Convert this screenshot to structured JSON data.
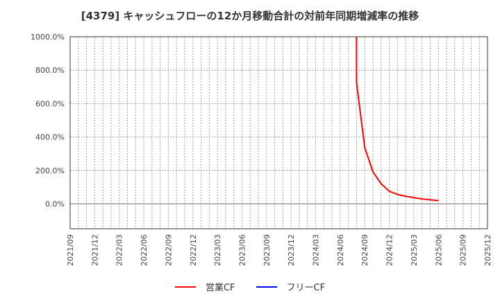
{
  "title": "[4379]  キャッシュフローの12か月移動合計の対前年同期増減率の推移",
  "legend": [
    {
      "label": "営業CF",
      "color": "#ff0000"
    },
    {
      "label": "フリーCF",
      "color": "#0000ff"
    }
  ],
  "chart_data": {
    "type": "line",
    "title": "[4379]  キャッシュフローの12か月移動合計の対前年同期増減率の推移",
    "xlabel": "",
    "ylabel": "",
    "ylim": [
      -150,
      1000
    ],
    "yticks": [
      "0.0%",
      "200.0%",
      "400.0%",
      "600.0%",
      "800.0%",
      "1000.0%"
    ],
    "ytick_values": [
      0,
      200,
      400,
      600,
      800,
      1000
    ],
    "xticks": [
      "2021/09",
      "2021/12",
      "2022/03",
      "2022/06",
      "2022/09",
      "2022/12",
      "2023/03",
      "2023/06",
      "2023/09",
      "2023/12",
      "2024/03",
      "2024/06",
      "2024/09",
      "2024/12",
      "2025/03",
      "2025/06",
      "2025/09",
      "2025/12"
    ],
    "grid": true,
    "legend_position": "bottom",
    "x": [
      "2024/07",
      "2024/08",
      "2024/09",
      "2024/10",
      "2024/11",
      "2024/12",
      "2025/01",
      "2025/02",
      "2025/03",
      "2025/04",
      "2025/05",
      "2025/06"
    ],
    "series": [
      {
        "name": "営業CF",
        "color": "#ff0000",
        "values": [
          50000,
          722,
          336,
          191,
          120,
          75,
          56,
          45,
          37,
          29,
          24,
          19
        ]
      },
      {
        "name": "フリーCF",
        "color": "#0000ff",
        "values": []
      }
    ]
  }
}
